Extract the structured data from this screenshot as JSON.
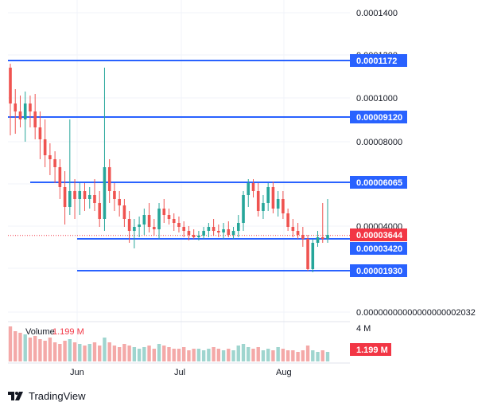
{
  "colors": {
    "up": "#26a69a",
    "down": "#ef5350",
    "level_line": "#2962ff",
    "level_badge": "#2962ff",
    "price_badge": "#f23645",
    "grid": "#f0f3fa",
    "vol_up": "#9fd5cf",
    "vol_down": "#f4a9a8"
  },
  "price_axis": {
    "ticks": [
      "0.0001400",
      "0.0001200",
      "0.0001000",
      "0.00008000",
      "0.00004000",
      "0.00000000000000000002032"
    ]
  },
  "levels": [
    {
      "label": "0.0001172",
      "value": 0.0001172
    },
    {
      "label": "0.00009120",
      "value": 9.12e-05
    },
    {
      "label": "0.00006065",
      "value": 6.065e-05
    },
    {
      "label": "0.00003420",
      "value": 3.42e-05
    },
    {
      "label": "0.00001930",
      "value": 1.93e-05
    }
  ],
  "current_price": {
    "label": "0.00003644",
    "value": 3.644e-05
  },
  "volume": {
    "title": "Volume",
    "value": "1.199 M",
    "axis_label": "4 M",
    "badge": "1.199 M"
  },
  "time_axis": [
    "Jun",
    "Jul",
    "Aug"
  ],
  "footer": {
    "brand": "TradingView",
    "logo_icon": "tradingview-logo-icon"
  }
}
